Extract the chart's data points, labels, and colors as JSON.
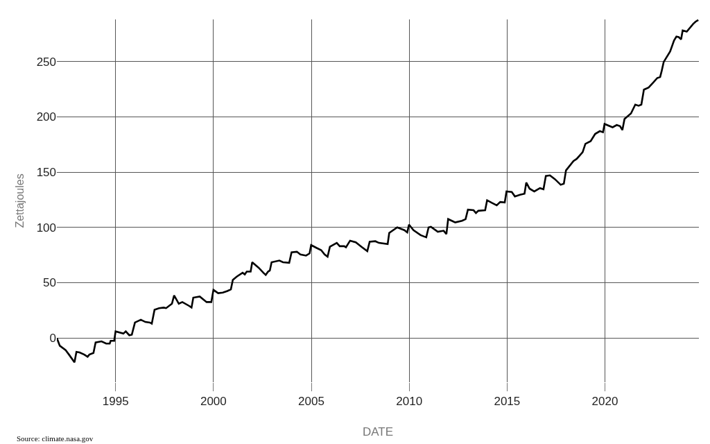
{
  "chart_data": {
    "type": "line",
    "xlabel": "DATE",
    "ylabel": "Zettajoules",
    "annotations": [
      "Source: climate.nasa.gov"
    ],
    "x": [
      1992.0,
      1992.15,
      1992.45,
      1992.62,
      1992.9,
      1993.0,
      1993.16,
      1993.4,
      1993.57,
      1993.66,
      1993.87,
      1993.98,
      1994.28,
      1994.52,
      1994.7,
      1994.75,
      1994.93,
      1995.0,
      1995.4,
      1995.52,
      1995.7,
      1995.83,
      1995.99,
      1996.29,
      1996.52,
      1996.75,
      1996.85,
      1996.99,
      1997.22,
      1997.46,
      1997.58,
      1997.88,
      1997.99,
      1998.23,
      1998.41,
      1998.76,
      1998.88,
      1998.97,
      1999.3,
      1999.65,
      1999.89,
      2000.0,
      2000.24,
      2000.48,
      2000.71,
      2000.89,
      2000.99,
      2001.19,
      2001.49,
      2001.6,
      2001.7,
      2001.9,
      2001.98,
      2002.31,
      2002.55,
      2002.67,
      2002.79,
      2002.88,
      2002.97,
      2003.37,
      2003.55,
      2003.87,
      2003.99,
      2004.26,
      2004.44,
      2004.73,
      2004.91,
      2004.99,
      2005.26,
      2005.5,
      2005.68,
      2005.83,
      2005.95,
      2006.3,
      2006.45,
      2006.68,
      2006.77,
      2006.98,
      2007.27,
      2007.56,
      2007.86,
      2007.98,
      2008.27,
      2008.45,
      2008.9,
      2008.98,
      2009.39,
      2009.75,
      2009.9,
      2009.99,
      2010.22,
      2010.58,
      2010.87,
      2010.99,
      2011.11,
      2011.46,
      2011.76,
      2011.9,
      2011.99,
      2012.23,
      2012.35,
      2012.7,
      2012.88,
      2013.0,
      2013.29,
      2013.41,
      2013.53,
      2013.88,
      2013.98,
      2014.24,
      2014.47,
      2014.65,
      2014.88,
      2014.97,
      2015.24,
      2015.4,
      2015.66,
      2015.89,
      2015.98,
      2016.15,
      2016.39,
      2016.68,
      2016.86,
      2016.98,
      2017.19,
      2017.45,
      2017.74,
      2017.9,
      2018.01,
      2018.39,
      2018.56,
      2018.86,
      2019.0,
      2019.27,
      2019.5,
      2019.74,
      2019.9,
      2019.98,
      2020.39,
      2020.6,
      2020.77,
      2020.89,
      2021.0,
      2021.33,
      2021.55,
      2021.72,
      2021.86,
      2021.99,
      2022.23,
      2022.47,
      2022.67,
      2022.82,
      2022.9,
      2023.0,
      2023.33,
      2023.53,
      2023.65,
      2023.77,
      2023.89,
      2023.97,
      2024.18,
      2024.51,
      2024.63,
      2024.77
    ],
    "series": [
      {
        "color": "#000000",
        "values": [
          0,
          -7,
          -11,
          -15,
          -22,
          -12.5,
          -13,
          -15,
          -17,
          -15,
          -13.5,
          -4,
          -3,
          -5,
          -5,
          -2.5,
          -2.5,
          6,
          4,
          6,
          2.5,
          3,
          14,
          16.5,
          14.5,
          14,
          13,
          25.5,
          27,
          27.5,
          27,
          31,
          38.5,
          31,
          32.5,
          29,
          27.5,
          36.5,
          37.5,
          32.5,
          32.5,
          43.5,
          40.5,
          41,
          42.5,
          44,
          52.5,
          55.5,
          59,
          57.5,
          60,
          60,
          68.5,
          63.5,
          59,
          57,
          60,
          61,
          68.5,
          70,
          68.5,
          68,
          77.5,
          78,
          75.5,
          74.5,
          76.5,
          84,
          81.5,
          79.5,
          75.5,
          73.5,
          82.5,
          86,
          83,
          83,
          82,
          88,
          86.5,
          82.5,
          78.5,
          87,
          87.5,
          86,
          85,
          95,
          100,
          97.5,
          95.5,
          102.5,
          97.5,
          93,
          91,
          100,
          100.5,
          96,
          97,
          94,
          107.5,
          105.5,
          104.5,
          106,
          107.5,
          116,
          115.5,
          113,
          115,
          115.5,
          124.5,
          122,
          120,
          123,
          122.5,
          132.5,
          132,
          128,
          129.5,
          130.5,
          140.5,
          135,
          132.5,
          135.5,
          134.5,
          146.5,
          147,
          143.5,
          138.5,
          139.5,
          151.5,
          160,
          162,
          168,
          175.5,
          178,
          184.5,
          187,
          186,
          193.5,
          190.5,
          192.5,
          191.5,
          188,
          198,
          203,
          211,
          210,
          211,
          224.5,
          226.5,
          231,
          235,
          236,
          241.5,
          249.5,
          259,
          269,
          272.5,
          272,
          270,
          278,
          277,
          284,
          286,
          287.5
        ]
      }
    ],
    "xlim": [
      1992.0,
      2024.8
    ],
    "ylim": [
      -40,
      288
    ],
    "xticks": [
      1995,
      2000,
      2005,
      2010,
      2015,
      2020
    ],
    "yticks": [
      0,
      50,
      100,
      150,
      200,
      250
    ],
    "grid": true,
    "line_style": "solid",
    "marker": "none"
  }
}
